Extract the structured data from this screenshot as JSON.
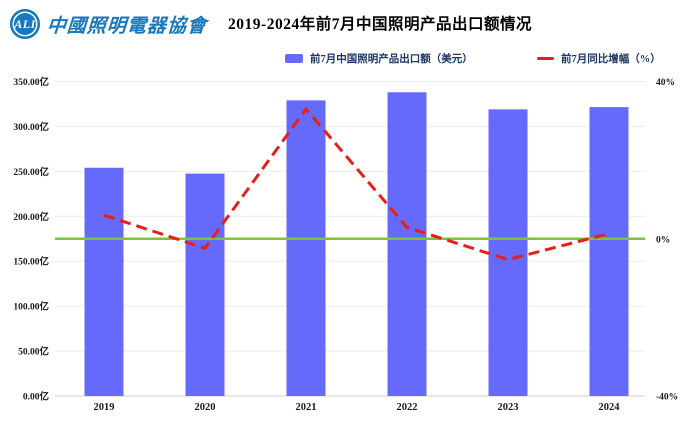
{
  "header": {
    "logo": {
      "abbr": "ALI",
      "org_name": "中國照明電器協會",
      "color": "#1778be"
    },
    "title": "2019-2024年前7月中国照明产品出口额情况"
  },
  "legend": {
    "export": {
      "label": "前7月中国照明产品出口额（美元）",
      "color": "#666afa"
    },
    "growth": {
      "label": "前7月同比增幅（%）",
      "color": "#e71f19"
    }
  },
  "chart_data": {
    "type": "bar",
    "title": "2019-2024年前7月中国照明产品出口额情况",
    "categories": [
      "2019",
      "2020",
      "2021",
      "2022",
      "2023",
      "2024"
    ],
    "series": [
      {
        "name": "前7月中国照明产品出口额（美元）",
        "type": "bar",
        "axis": "left",
        "unit": "亿美元",
        "color": "#666afa",
        "values": [
          254,
          247.5,
          329,
          338,
          319,
          321.5
        ]
      },
      {
        "name": "前7月同比增幅（%）",
        "type": "dashed-line",
        "axis": "right",
        "unit": "%",
        "color": "#e71f19",
        "values": [
          6,
          -2.4,
          33,
          2.9,
          -5.3,
          1.3
        ]
      }
    ],
    "left_axis": {
      "min": 0,
      "max": 350,
      "step": 50,
      "tick_labels": [
        "350.00亿",
        "300.00亿",
        "250.00亿",
        "200.00亿",
        "150.00亿",
        "100.00亿",
        "50.00亿",
        "0.00亿"
      ]
    },
    "right_axis": {
      "min": -40,
      "max": 40,
      "tick_labels": [
        "40%",
        "0%",
        "-40%"
      ],
      "tick_values": [
        40,
        0,
        -40
      ]
    },
    "zero_line": {
      "value": 0,
      "color": "#7cc342"
    },
    "grid": true,
    "gridline_color": "#ececec",
    "axis_line_color": "#cfcfcf",
    "legend_position": "top"
  }
}
